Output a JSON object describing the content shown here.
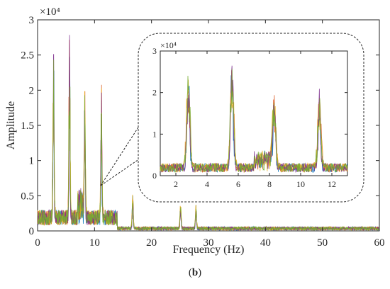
{
  "chart_data": [
    {
      "type": "line",
      "title": "",
      "xlabel": "Frequency (Hz)",
      "ylabel": "Amplitude",
      "y_exponent_label": "×10⁴",
      "xlim": [
        0,
        60
      ],
      "ylim": [
        0,
        3
      ],
      "xticks": [
        "0",
        "10",
        "20",
        "30",
        "40",
        "50",
        "60"
      ],
      "yticks": [
        "0",
        "0.5",
        "1",
        "1.5",
        "2",
        "2.5",
        "3"
      ],
      "grid": false,
      "peaks": [
        {
          "x": 2.8,
          "y": 2.47
        },
        {
          "x": 5.6,
          "y": 2.76
        },
        {
          "x": 8.3,
          "y": 1.86
        },
        {
          "x": 11.2,
          "y": 1.86
        },
        {
          "x": 16.7,
          "y": 0.52
        },
        {
          "x": 25.1,
          "y": 0.37
        },
        {
          "x": 27.8,
          "y": 0.35
        }
      ],
      "series": [
        {
          "color": "#0072BD"
        },
        {
          "color": "#D95319"
        },
        {
          "color": "#EDB120"
        },
        {
          "color": "#7E2F8E"
        },
        {
          "color": "#77AC30"
        }
      ]
    },
    {
      "type": "line",
      "role": "inset-zoom",
      "title": "",
      "y_exponent_label": "×10⁴",
      "xlim": [
        1,
        13
      ],
      "ylim": [
        0,
        3
      ],
      "xticks": [
        "2",
        "4",
        "6",
        "8",
        "10",
        "12"
      ],
      "yticks": [
        "0",
        "1",
        "2",
        "3"
      ],
      "peaks": [
        {
          "x": 2.8,
          "y": 2.47
        },
        {
          "x": 5.6,
          "y": 2.76
        },
        {
          "x": 8.3,
          "y": 1.86
        },
        {
          "x": 11.2,
          "y": 1.86
        }
      ]
    }
  ],
  "caption": {
    "open": "(",
    "letter": "b",
    "close": ")"
  }
}
